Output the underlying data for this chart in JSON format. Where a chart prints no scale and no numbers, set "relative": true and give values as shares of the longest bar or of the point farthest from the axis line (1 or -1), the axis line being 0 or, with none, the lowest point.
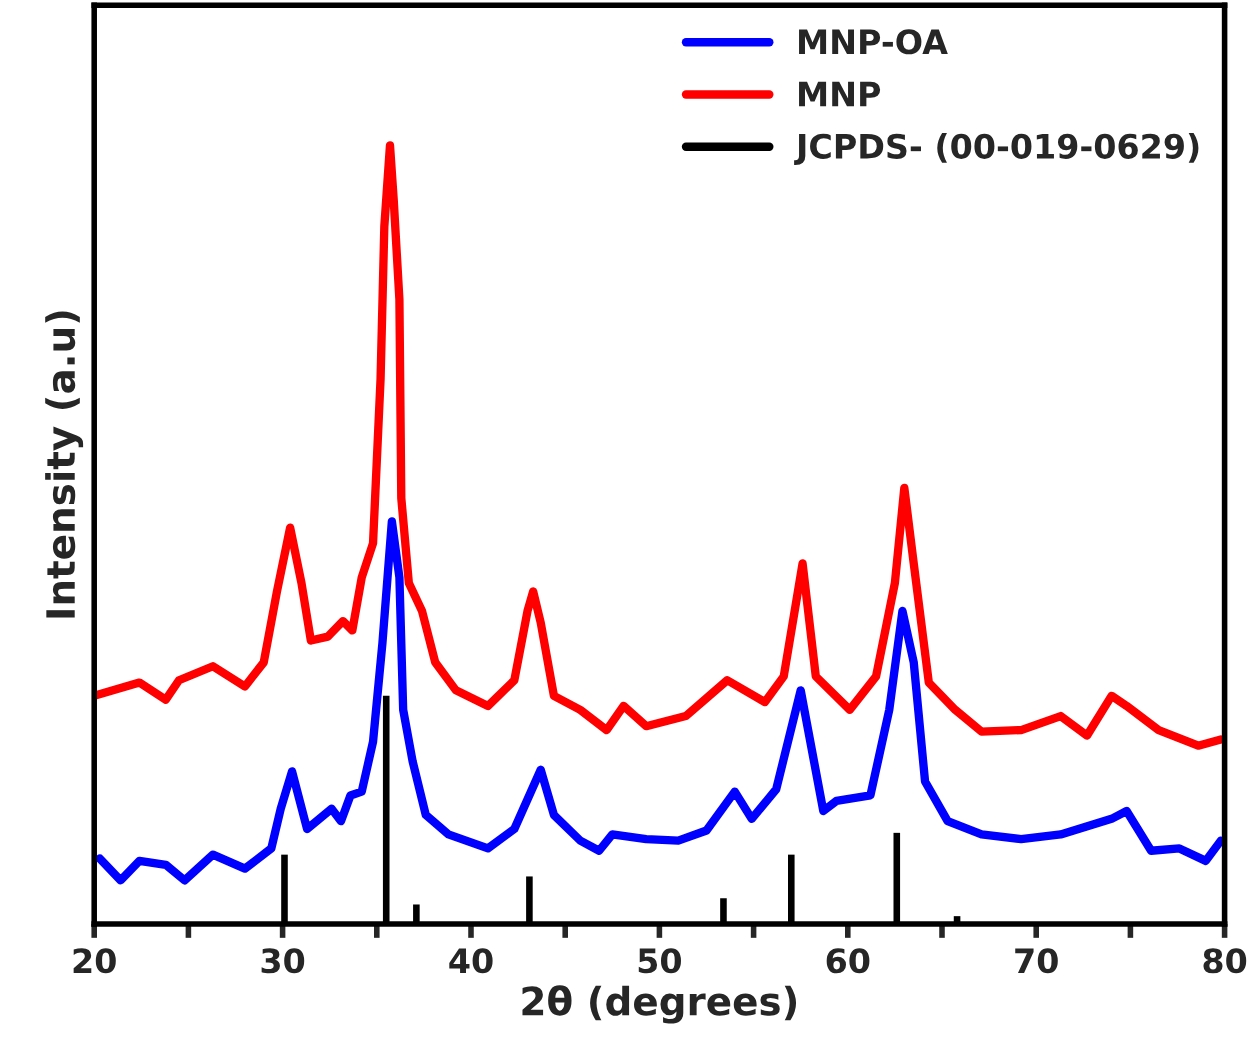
{
  "chart_data": {
    "type": "line",
    "relative": true,
    "xlabel": "2θ (degrees)",
    "ylabel": "Intensity (a.u)",
    "xlim": [
      20,
      80
    ],
    "xticks": [
      20,
      {
        "value": 25,
        "label": null
      },
      30,
      {
        "value": 35,
        "label": null
      },
      40,
      {
        "value": 45,
        "label": null
      },
      50,
      {
        "value": 55,
        "label": null
      },
      60,
      {
        "value": 65,
        "label": null
      },
      70,
      {
        "value": 75,
        "label": null
      },
      80
    ],
    "tick_labels": "x",
    "legend": "top right",
    "grid": false,
    "series": [
      {
        "name": "MNP-OA",
        "color": "#0000ff",
        "x": [
          20.3,
          21.4,
          22.4,
          23.8,
          24.8,
          26.3,
          28.0,
          29.4,
          29.9,
          30.5,
          31.3,
          32.6,
          33.1,
          33.6,
          34.2,
          34.8,
          35.3,
          35.8,
          36.2,
          36.4,
          36.9,
          37.6,
          38.8,
          40.9,
          42.3,
          43.7,
          44.4,
          45.8,
          46.8,
          47.5,
          49.3,
          51.0,
          52.5,
          54.0,
          54.9,
          56.2,
          57.5,
          58.7,
          59.4,
          61.2,
          62.2,
          62.9,
          63.5,
          64.1,
          65.3,
          67.1,
          69.2,
          71.3,
          74.0,
          74.8,
          76.1,
          77.6,
          79.0,
          79.8
        ],
        "values": [
          0.084,
          0.056,
          0.081,
          0.076,
          0.056,
          0.089,
          0.071,
          0.097,
          0.148,
          0.196,
          0.122,
          0.148,
          0.132,
          0.165,
          0.17,
          0.234,
          0.361,
          0.517,
          0.445,
          0.275,
          0.209,
          0.14,
          0.115,
          0.097,
          0.122,
          0.198,
          0.14,
          0.107,
          0.094,
          0.115,
          0.109,
          0.107,
          0.12,
          0.17,
          0.135,
          0.173,
          0.3,
          0.145,
          0.158,
          0.165,
          0.275,
          0.402,
          0.336,
          0.183,
          0.132,
          0.115,
          0.109,
          0.115,
          0.135,
          0.145,
          0.094,
          0.097,
          0.081,
          0.107
        ]
      },
      {
        "name": "MNP",
        "color": "#ff0000",
        "x": [
          20.0,
          22.4,
          23.8,
          24.5,
          26.3,
          28.0,
          29.0,
          29.7,
          30.4,
          31.0,
          31.5,
          32.4,
          33.2,
          33.7,
          34.2,
          34.8,
          35.2,
          35.4,
          35.7,
          35.9,
          36.2,
          36.3,
          36.7,
          37.4,
          38.1,
          39.2,
          40.9,
          42.3,
          43.0,
          43.3,
          43.7,
          44.4,
          45.8,
          47.2,
          48.1,
          49.3,
          51.4,
          53.6,
          55.6,
          56.6,
          57.6,
          58.3,
          60.1,
          61.5,
          62.5,
          63.0,
          63.5,
          64.3,
          65.7,
          67.1,
          69.2,
          71.3,
          72.7,
          74.0,
          74.8,
          76.5,
          78.6,
          79.8
        ],
        "values": [
          0.293,
          0.31,
          0.288,
          0.313,
          0.331,
          0.305,
          0.336,
          0.427,
          0.509,
          0.438,
          0.364,
          0.369,
          0.389,
          0.377,
          0.445,
          0.489,
          0.7,
          0.896,
          1.0,
          0.929,
          0.802,
          0.547,
          0.438,
          0.402,
          0.336,
          0.3,
          0.28,
          0.313,
          0.402,
          0.427,
          0.387,
          0.293,
          0.275,
          0.249,
          0.28,
          0.254,
          0.267,
          0.313,
          0.285,
          0.318,
          0.463,
          0.318,
          0.275,
          0.318,
          0.438,
          0.56,
          0.463,
          0.31,
          0.275,
          0.247,
          0.249,
          0.267,
          0.242,
          0.293,
          0.28,
          0.249,
          0.229,
          0.237
        ]
      },
      {
        "name": "JCPDS- (00-019-0629)",
        "color": "#000000",
        "type": "bar",
        "x": [
          30.1,
          35.5,
          37.1,
          43.1,
          53.4,
          57.0,
          62.6,
          65.8
        ],
        "values": [
          0.089,
          0.293,
          0.025,
          0.061,
          0.033,
          0.089,
          0.117,
          0.01
        ]
      }
    ]
  }
}
